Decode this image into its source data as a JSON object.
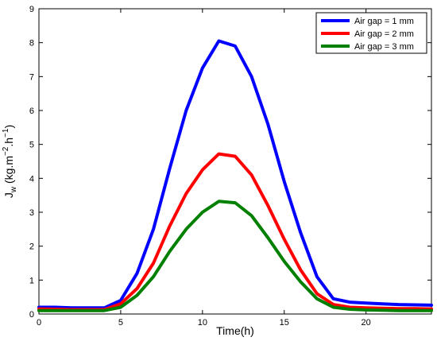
{
  "chart_data": {
    "type": "line",
    "xlabel": "Time(h)",
    "ylabel": {
      "main": "J",
      "sub": "w",
      "paren_open": " (kg.m",
      "sup1": "−2",
      "mid": ".h",
      "sup2": "−1",
      "paren_close": ")"
    },
    "xlim": [
      0,
      24
    ],
    "ylim": [
      0,
      9
    ],
    "xticks": [
      0,
      5,
      10,
      15,
      20
    ],
    "yticks": [
      0,
      1,
      2,
      3,
      4,
      5,
      6,
      7,
      8,
      9
    ],
    "grid": false,
    "legend_position": "top-right",
    "series": [
      {
        "name": "Air gap = 1 mm",
        "color": "#0000ff",
        "x": [
          0,
          1,
          2,
          3,
          4,
          5,
          6,
          7,
          8,
          9,
          10,
          11,
          12,
          13,
          14,
          15,
          16,
          17,
          18,
          19,
          20,
          21,
          22,
          23,
          24
        ],
        "y": [
          0.2,
          0.2,
          0.18,
          0.18,
          0.18,
          0.4,
          1.2,
          2.5,
          4.3,
          6.0,
          7.25,
          8.05,
          7.9,
          7.0,
          5.6,
          3.9,
          2.4,
          1.1,
          0.45,
          0.35,
          0.32,
          0.3,
          0.28,
          0.27,
          0.26
        ]
      },
      {
        "name": "Air gap = 2 mm",
        "color": "#ff0000",
        "x": [
          0,
          1,
          2,
          3,
          4,
          5,
          6,
          7,
          8,
          9,
          10,
          11,
          12,
          13,
          14,
          15,
          16,
          17,
          18,
          19,
          20,
          21,
          22,
          23,
          24
        ],
        "y": [
          0.15,
          0.14,
          0.13,
          0.13,
          0.13,
          0.3,
          0.75,
          1.5,
          2.6,
          3.55,
          4.25,
          4.72,
          4.65,
          4.1,
          3.2,
          2.2,
          1.3,
          0.6,
          0.28,
          0.2,
          0.18,
          0.17,
          0.16,
          0.16,
          0.15
        ]
      },
      {
        "name": "Air gap = 3 mm",
        "color": "#008000",
        "x": [
          0,
          1,
          2,
          3,
          4,
          5,
          6,
          7,
          8,
          9,
          10,
          11,
          12,
          13,
          14,
          15,
          16,
          17,
          18,
          19,
          20,
          21,
          22,
          23,
          24
        ],
        "y": [
          0.1,
          0.1,
          0.1,
          0.1,
          0.1,
          0.2,
          0.55,
          1.1,
          1.85,
          2.5,
          3.0,
          3.32,
          3.28,
          2.9,
          2.25,
          1.55,
          0.95,
          0.45,
          0.2,
          0.14,
          0.12,
          0.11,
          0.1,
          0.1,
          0.1
        ]
      }
    ]
  }
}
